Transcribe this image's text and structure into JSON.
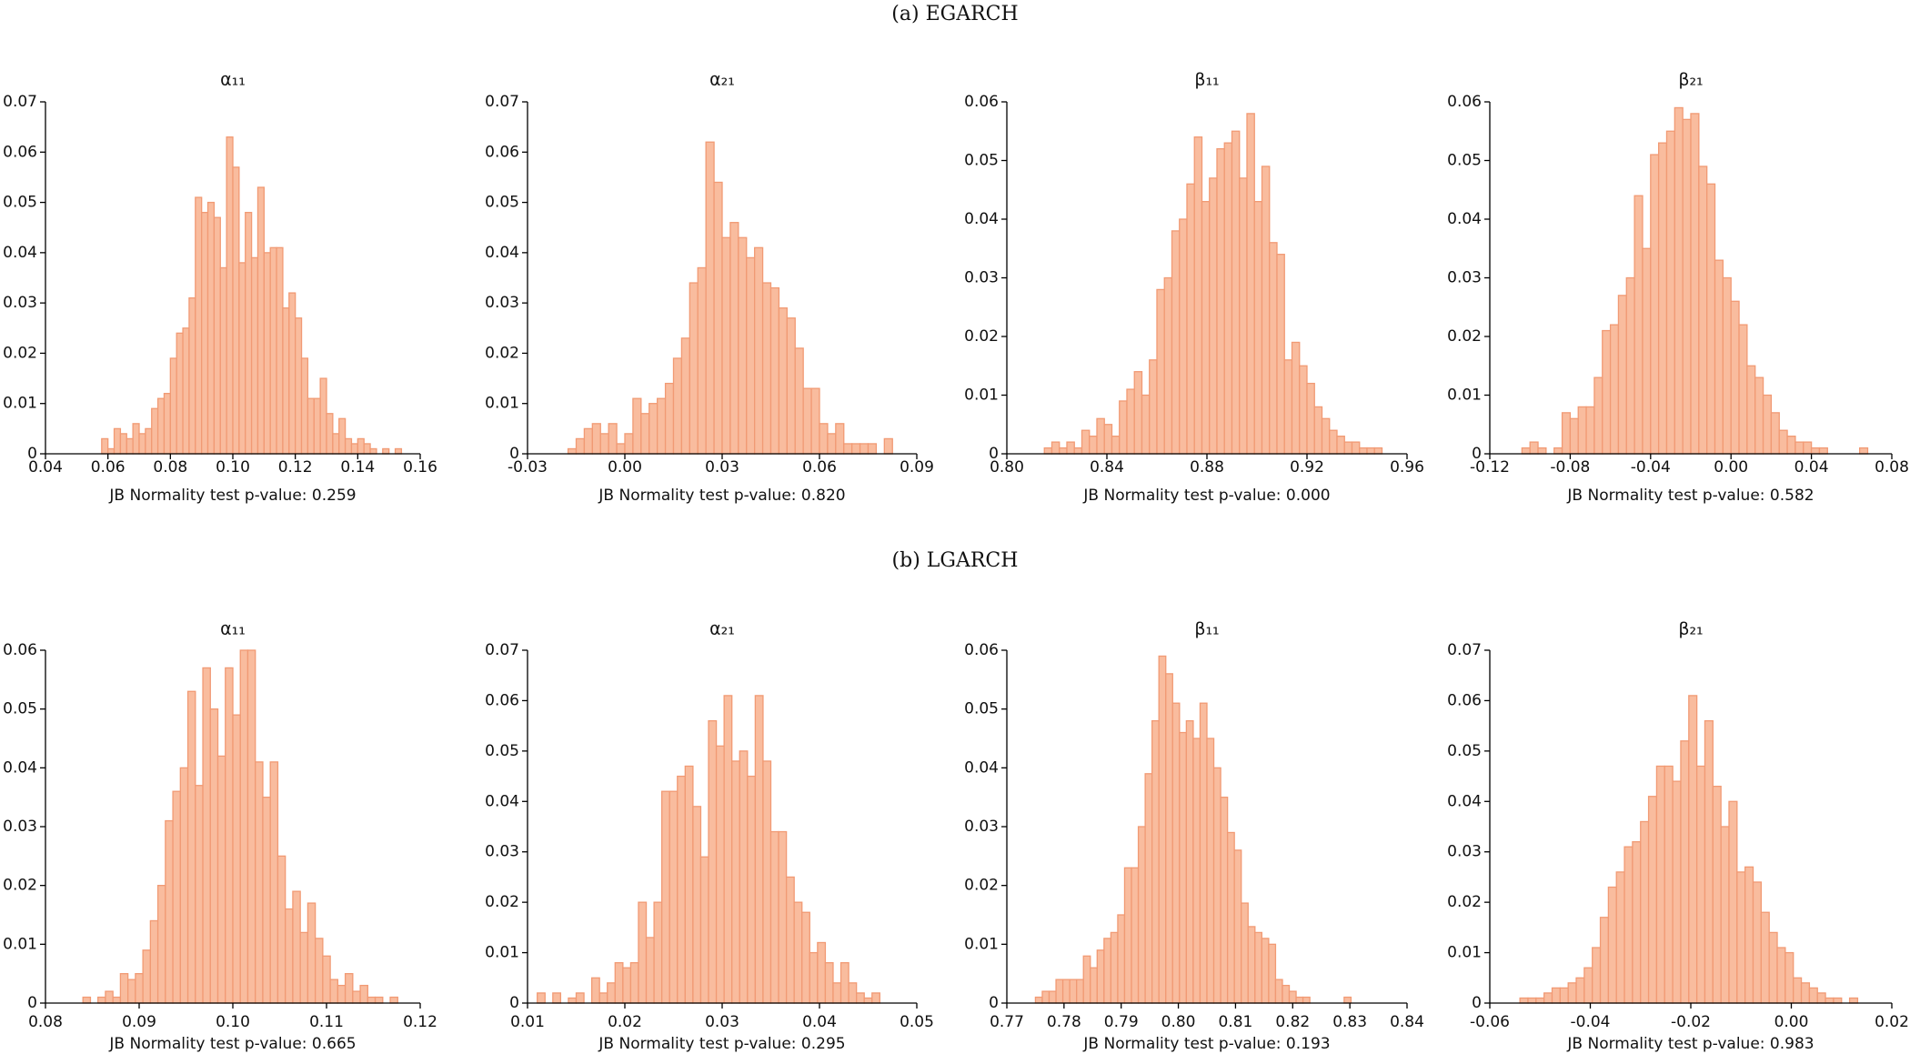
{
  "panel_titles": [
    "(a) EGARCH",
    "(b) LGARCH"
  ],
  "chart_data": [
    {
      "type": "histogram",
      "title": "α₁₁",
      "xlabel": "JB Normality test p-value: 0.259",
      "color": "#f9bc9e",
      "edgecolor": "#f19a74",
      "bins": [
        0.058,
        0.06,
        0.062,
        0.064,
        0.066,
        0.068,
        0.07,
        0.072,
        0.074,
        0.076,
        0.078,
        0.08,
        0.082,
        0.084,
        0.086,
        0.088,
        0.09,
        0.092,
        0.094,
        0.096,
        0.098,
        0.1,
        0.102,
        0.104,
        0.106,
        0.108,
        0.11,
        0.112,
        0.114,
        0.116,
        0.118,
        0.12,
        0.122,
        0.124,
        0.126,
        0.128,
        0.13,
        0.132,
        0.134,
        0.136,
        0.138,
        0.14,
        0.142,
        0.144,
        0.146,
        0.148,
        0.15,
        0.152,
        0.154
      ],
      "values": [
        0.003,
        0.001,
        0.005,
        0.004,
        0.003,
        0.006,
        0.004,
        0.005,
        0.009,
        0.011,
        0.012,
        0.019,
        0.024,
        0.025,
        0.031,
        0.051,
        0.048,
        0.05,
        0.047,
        0.037,
        0.063,
        0.057,
        0.038,
        0.048,
        0.039,
        0.053,
        0.04,
        0.041,
        0.041,
        0.029,
        0.032,
        0.027,
        0.019,
        0.011,
        0.011,
        0.015,
        0.008,
        0.004,
        0.007,
        0.003,
        0.002,
        0.003,
        0.002,
        0.001,
        0.0,
        0.001,
        0.0,
        0.001
      ],
      "xlim": [
        0.04,
        0.16
      ],
      "xticks": [
        0.04,
        0.06,
        0.08,
        {
          "value": 0.1,
          "label": "0.10"
        },
        0.12,
        0.14,
        0.16
      ],
      "ylim": [
        0,
        0.07
      ],
      "yticks": [
        0,
        0.01,
        0.02,
        0.03,
        0.04,
        0.05,
        0.06,
        0.07
      ]
    },
    {
      "type": "histogram",
      "title": "α₂₁",
      "xlabel": "JB Normality test p-value: 0.820",
      "color": "#f9bc9e",
      "edgecolor": "#f19a74",
      "bins": [
        -0.0175,
        -0.015,
        -0.0125,
        -0.01,
        -0.0075,
        -0.005,
        -0.0025,
        0,
        0.0025,
        0.005,
        0.0075,
        0.01,
        0.0125,
        0.015,
        0.0175,
        0.02,
        0.0225,
        0.025,
        0.0275,
        0.03,
        0.0325,
        0.035,
        0.0375,
        0.04,
        0.0425,
        0.045,
        0.0475,
        0.05,
        0.0525,
        0.055,
        0.0575,
        0.06,
        0.0625,
        0.065,
        0.0675,
        0.07,
        0.0725,
        0.075,
        0.0775,
        0.08,
        0.0825
      ],
      "values": [
        0.001,
        0.003,
        0.005,
        0.006,
        0.004,
        0.006,
        0.002,
        0.004,
        0.011,
        0.008,
        0.01,
        0.011,
        0.014,
        0.019,
        0.023,
        0.034,
        0.037,
        0.062,
        0.054,
        0.043,
        0.046,
        0.043,
        0.039,
        0.041,
        0.034,
        0.033,
        0.029,
        0.027,
        0.021,
        0.013,
        0.013,
        0.006,
        0.004,
        0.006,
        0.002,
        0.002,
        0.002,
        0.002,
        0.0,
        0.003
      ],
      "xlim": [
        -0.03,
        0.09
      ],
      "xticks": [
        -0.03,
        {
          "value": 0,
          "label": "0.00"
        },
        0.03,
        0.06,
        0.09
      ],
      "ylim": [
        0,
        0.07
      ],
      "yticks": [
        0,
        0.01,
        0.02,
        0.03,
        0.04,
        0.05,
        0.06,
        0.07
      ]
    },
    {
      "type": "histogram",
      "title": "β₁₁",
      "xlabel": "JB Normality test p-value: 0.000",
      "color": "#f9bc9e",
      "edgecolor": "#f19a74",
      "bins": [
        0.815,
        0.818,
        0.821,
        0.824,
        0.827,
        0.83,
        0.833,
        0.836,
        0.839,
        0.842,
        0.845,
        0.848,
        0.851,
        0.854,
        0.857,
        0.86,
        0.863,
        0.866,
        0.869,
        0.872,
        0.875,
        0.878,
        0.881,
        0.884,
        0.887,
        0.89,
        0.893,
        0.896,
        0.899,
        0.902,
        0.905,
        0.908,
        0.911,
        0.914,
        0.917,
        0.92,
        0.923,
        0.926,
        0.929,
        0.932,
        0.935,
        0.938,
        0.941,
        0.944,
        0.947,
        0.95
      ],
      "values": [
        0.001,
        0.002,
        0.001,
        0.002,
        0.001,
        0.004,
        0.003,
        0.006,
        0.005,
        0.003,
        0.009,
        0.011,
        0.014,
        0.01,
        0.016,
        0.028,
        0.03,
        0.038,
        0.04,
        0.046,
        0.054,
        0.043,
        0.047,
        0.052,
        0.053,
        0.055,
        0.047,
        0.058,
        0.043,
        0.049,
        0.036,
        0.034,
        0.016,
        0.019,
        0.015,
        0.012,
        0.008,
        0.006,
        0.004,
        0.003,
        0.002,
        0.002,
        0.001,
        0.001,
        0.001
      ],
      "xlim": [
        0.8,
        0.96
      ],
      "xticks": [
        {
          "value": 0.8,
          "label": "0.80"
        },
        0.84,
        0.88,
        0.92,
        0.96
      ],
      "ylim": [
        0,
        0.06
      ],
      "yticks": [
        0,
        0.01,
        0.02,
        0.03,
        0.04,
        0.05,
        0.06
      ]
    },
    {
      "type": "histogram",
      "title": "β₂₁",
      "xlabel": "JB Normality test p-value: 0.582",
      "color": "#f9bc9e",
      "edgecolor": "#f19a74",
      "bins": [
        -0.104,
        -0.1,
        -0.096,
        -0.092,
        -0.088,
        -0.084,
        -0.08,
        -0.076,
        -0.072,
        -0.068,
        -0.064,
        -0.06,
        -0.056,
        -0.052,
        -0.048,
        -0.044,
        -0.04,
        -0.036,
        -0.032,
        -0.028,
        -0.024,
        -0.02,
        -0.016,
        -0.012,
        -0.008,
        -0.004,
        0,
        0.004,
        0.008,
        0.012,
        0.016,
        0.02,
        0.024,
        0.028,
        0.032,
        0.036,
        0.04,
        0.044,
        0.048,
        0.052,
        0.056,
        0.06,
        0.064,
        0.068
      ],
      "values": [
        0.001,
        0.002,
        0.001,
        0.0,
        0.001,
        0.007,
        0.006,
        0.008,
        0.008,
        0.013,
        0.021,
        0.022,
        0.027,
        0.03,
        0.044,
        0.035,
        0.051,
        0.053,
        0.055,
        0.059,
        0.057,
        0.058,
        0.049,
        0.046,
        0.033,
        0.03,
        0.026,
        0.022,
        0.015,
        0.013,
        0.01,
        0.007,
        0.004,
        0.003,
        0.002,
        0.002,
        0.001,
        0.001,
        0.0,
        0.0,
        0.0,
        0.0,
        0.001
      ],
      "xlim": [
        -0.12,
        0.08
      ],
      "xticks": [
        -0.12,
        -0.08,
        -0.04,
        {
          "value": 0,
          "label": "0.00"
        },
        0.04,
        0.08
      ],
      "ylim": [
        0,
        0.06
      ],
      "yticks": [
        0,
        0.01,
        0.02,
        0.03,
        0.04,
        0.05,
        0.06
      ]
    },
    {
      "type": "histogram",
      "title": "α₁₁",
      "xlabel": "JB Normality test p-value: 0.665",
      "color": "#f9bc9e",
      "edgecolor": "#f19a74",
      "bins": [
        0.084,
        0.0848,
        0.0856,
        0.0864,
        0.0872,
        0.088,
        0.0888,
        0.0896,
        0.0904,
        0.0912,
        0.092,
        0.0928,
        0.0936,
        0.0944,
        0.0952,
        0.096,
        0.0968,
        0.0976,
        0.0984,
        0.0992,
        0.1,
        0.1008,
        0.1016,
        0.1024,
        0.1032,
        0.104,
        0.1048,
        0.1056,
        0.1064,
        0.1072,
        0.108,
        0.1088,
        0.1096,
        0.1104,
        0.1112,
        0.112,
        0.1128,
        0.1136,
        0.1144,
        0.1152,
        0.116,
        0.1168,
        0.1176
      ],
      "values": [
        0.001,
        0.0,
        0.001,
        0.002,
        0.001,
        0.005,
        0.004,
        0.005,
        0.009,
        0.014,
        0.02,
        0.031,
        0.036,
        0.04,
        0.053,
        0.037,
        0.057,
        0.05,
        0.042,
        0.057,
        0.049,
        0.06,
        0.06,
        0.041,
        0.035,
        0.041,
        0.025,
        0.016,
        0.019,
        0.012,
        0.017,
        0.011,
        0.008,
        0.004,
        0.003,
        0.005,
        0.002,
        0.003,
        0.001,
        0.001,
        0.0,
        0.001
      ],
      "xlim": [
        0.08,
        0.12
      ],
      "xticks": [
        0.08,
        0.09,
        {
          "value": 0.1,
          "label": "0.10"
        },
        0.11,
        0.12
      ],
      "ylim": [
        0,
        0.06
      ],
      "yticks": [
        0,
        0.01,
        0.02,
        0.03,
        0.04,
        0.05,
        0.06
      ]
    },
    {
      "type": "histogram",
      "title": "α₂₁",
      "xlabel": "JB Normality test p-value: 0.295",
      "color": "#f9bc9e",
      "edgecolor": "#f19a74",
      "bins": [
        0.011,
        0.0118,
        0.0126,
        0.0134,
        0.0142,
        0.015,
        0.0158,
        0.0166,
        0.0174,
        0.0182,
        0.019,
        0.0198,
        0.0206,
        0.0214,
        0.0222,
        0.023,
        0.0238,
        0.0246,
        0.0254,
        0.0262,
        0.027,
        0.0278,
        0.0286,
        0.0294,
        0.0302,
        0.031,
        0.0318,
        0.0326,
        0.0334,
        0.0342,
        0.035,
        0.0358,
        0.0366,
        0.0374,
        0.0382,
        0.039,
        0.0398,
        0.0406,
        0.0414,
        0.0422,
        0.043,
        0.0438,
        0.0446,
        0.0454,
        0.0462
      ],
      "values": [
        0.002,
        0.0,
        0.002,
        0.0,
        0.001,
        0.002,
        0.0,
        0.005,
        0.002,
        0.004,
        0.008,
        0.007,
        0.008,
        0.02,
        0.013,
        0.02,
        0.042,
        0.042,
        0.045,
        0.047,
        0.039,
        0.029,
        0.056,
        0.051,
        0.061,
        0.048,
        0.05,
        0.045,
        0.061,
        0.048,
        0.034,
        0.034,
        0.025,
        0.02,
        0.018,
        0.01,
        0.012,
        0.008,
        0.004,
        0.008,
        0.004,
        0.002,
        0.001,
        0.002
      ],
      "xlim": [
        0.01,
        0.05
      ],
      "xticks": [
        0.01,
        0.02,
        0.03,
        0.04,
        0.05
      ],
      "ylim": [
        0,
        0.07
      ],
      "yticks": [
        0,
        0.01,
        0.02,
        0.03,
        0.04,
        0.05,
        0.06,
        0.07
      ]
    },
    {
      "type": "histogram",
      "title": "β₁₁",
      "xlabel": "JB Normality test p-value: 0.193",
      "color": "#f9bc9e",
      "edgecolor": "#f19a74",
      "bins": [
        0.775,
        0.7762,
        0.7774,
        0.7786,
        0.7798,
        0.781,
        0.7822,
        0.7834,
        0.7846,
        0.7858,
        0.787,
        0.7882,
        0.7894,
        0.7906,
        0.7918,
        0.793,
        0.7942,
        0.7954,
        0.7966,
        0.7978,
        0.799,
        0.8002,
        0.8014,
        0.8026,
        0.8038,
        0.805,
        0.8062,
        0.8074,
        0.8086,
        0.8098,
        0.811,
        0.8122,
        0.8134,
        0.8146,
        0.8158,
        0.817,
        0.8182,
        0.8194,
        0.8206,
        0.8218,
        0.823,
        0.8242,
        0.8254,
        0.8266,
        0.8278,
        0.829,
        0.8302
      ],
      "values": [
        0.001,
        0.002,
        0.002,
        0.004,
        0.004,
        0.004,
        0.004,
        0.008,
        0.006,
        0.009,
        0.011,
        0.012,
        0.015,
        0.023,
        0.023,
        0.03,
        0.039,
        0.048,
        0.059,
        0.056,
        0.051,
        0.046,
        0.048,
        0.045,
        0.051,
        0.045,
        0.04,
        0.035,
        0.029,
        0.026,
        0.017,
        0.013,
        0.012,
        0.011,
        0.01,
        0.004,
        0.003,
        0.002,
        0.001,
        0.001,
        0.0,
        0.0,
        0.0,
        0.0,
        0.0,
        0.001
      ],
      "xlim": [
        0.77,
        0.84
      ],
      "xticks": [
        0.77,
        0.78,
        0.79,
        {
          "value": 0.8,
          "label": "0.80"
        },
        0.81,
        0.82,
        0.83,
        0.84
      ],
      "ylim": [
        0,
        0.06
      ],
      "yticks": [
        0,
        0.01,
        0.02,
        0.03,
        0.04,
        0.05,
        0.06
      ]
    },
    {
      "type": "histogram",
      "title": "β₂₁",
      "xlabel": "JB Normality test p-value: 0.983",
      "color": "#f9bc9e",
      "edgecolor": "#f19a74",
      "bins": [
        -0.054,
        -0.0524,
        -0.0508,
        -0.0492,
        -0.0476,
        -0.046,
        -0.0444,
        -0.0428,
        -0.0412,
        -0.0396,
        -0.038,
        -0.0364,
        -0.0348,
        -0.0332,
        -0.0316,
        -0.03,
        -0.0284,
        -0.0268,
        -0.0252,
        -0.0236,
        -0.022,
        -0.0204,
        -0.0188,
        -0.0172,
        -0.0156,
        -0.014,
        -0.0124,
        -0.0108,
        -0.0092,
        -0.0076,
        -0.006,
        -0.0044,
        -0.0028,
        -0.0012,
        0.0004,
        0.002,
        0.0036,
        0.0052,
        0.0068,
        0.0084,
        0.01,
        0.0116,
        0.0132
      ],
      "values": [
        0.001,
        0.001,
        0.001,
        0.002,
        0.003,
        0.003,
        0.004,
        0.005,
        0.007,
        0.011,
        0.017,
        0.023,
        0.026,
        0.031,
        0.032,
        0.036,
        0.041,
        0.047,
        0.047,
        0.044,
        0.052,
        0.061,
        0.047,
        0.056,
        0.043,
        0.035,
        0.04,
        0.026,
        0.027,
        0.024,
        0.018,
        0.014,
        0.011,
        0.01,
        0.005,
        0.004,
        0.003,
        0.002,
        0.001,
        0.001,
        0.0,
        0.001
      ],
      "xlim": [
        -0.06,
        0.02
      ],
      "xticks": [
        -0.06,
        -0.04,
        -0.02,
        {
          "value": 0,
          "label": "0.00"
        },
        0.02
      ],
      "ylim": [
        0,
        0.07
      ],
      "yticks": [
        0,
        0.01,
        0.02,
        0.03,
        0.04,
        0.05,
        0.06,
        0.07
      ]
    }
  ]
}
